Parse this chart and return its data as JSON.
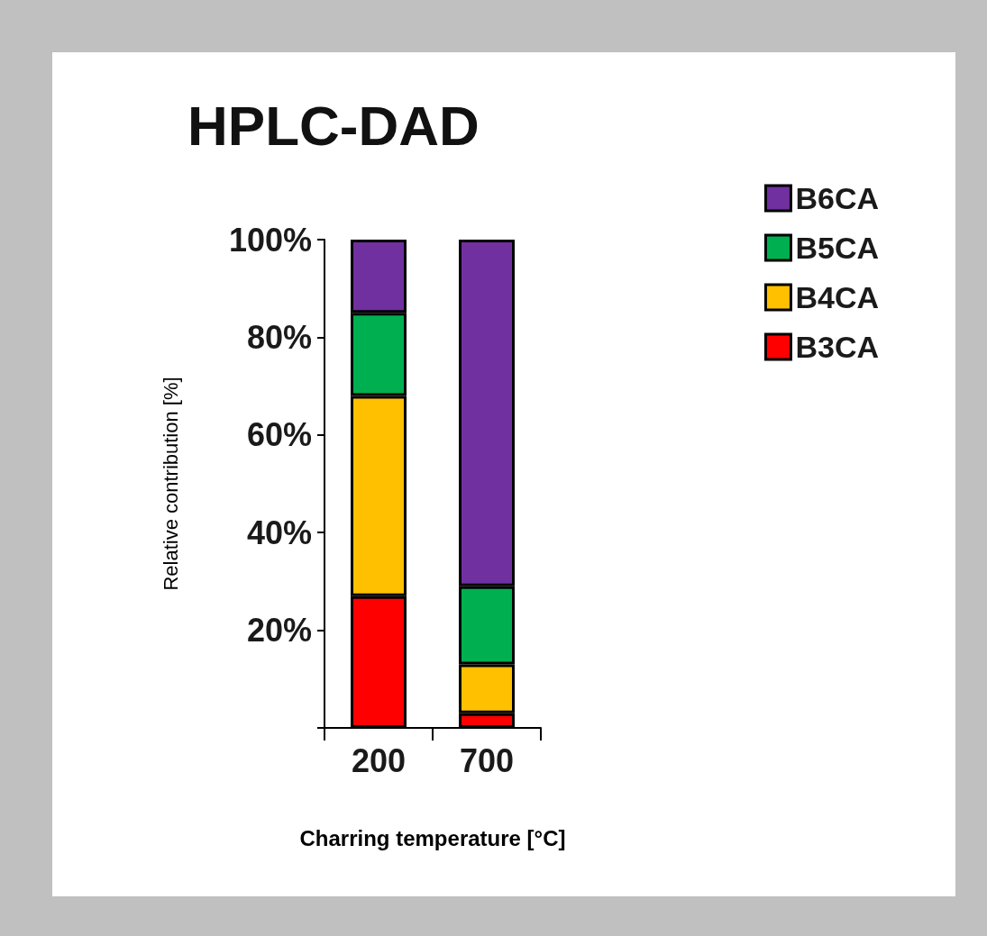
{
  "chart_data": {
    "type": "bar",
    "title": "HPLC-DAD",
    "xlabel": "Charring temperature [°C]",
    "ylabel": "Relative contribution [%]",
    "categories": [
      "200",
      "700"
    ],
    "stacked": true,
    "series": [
      {
        "name": "B3CA",
        "color": "#ff0000",
        "values": [
          27,
          3
        ]
      },
      {
        "name": "B4CA",
        "color": "#ffc000",
        "values": [
          41,
          10
        ]
      },
      {
        "name": "B5CA",
        "color": "#00b050",
        "values": [
          17,
          16
        ]
      },
      {
        "name": "B6CA",
        "color": "#7030a0",
        "values": [
          15,
          71
        ]
      }
    ],
    "ylim": [
      0,
      100
    ],
    "yticks": [
      {
        "value": 0,
        "label": null
      },
      {
        "value": 20,
        "label": "20%"
      },
      {
        "value": 40,
        "label": "40%"
      },
      {
        "value": 60,
        "label": "60%"
      },
      {
        "value": 80,
        "label": "80%"
      },
      {
        "value": 100,
        "label": "100%"
      }
    ],
    "legend": "top right",
    "grid": false
  }
}
